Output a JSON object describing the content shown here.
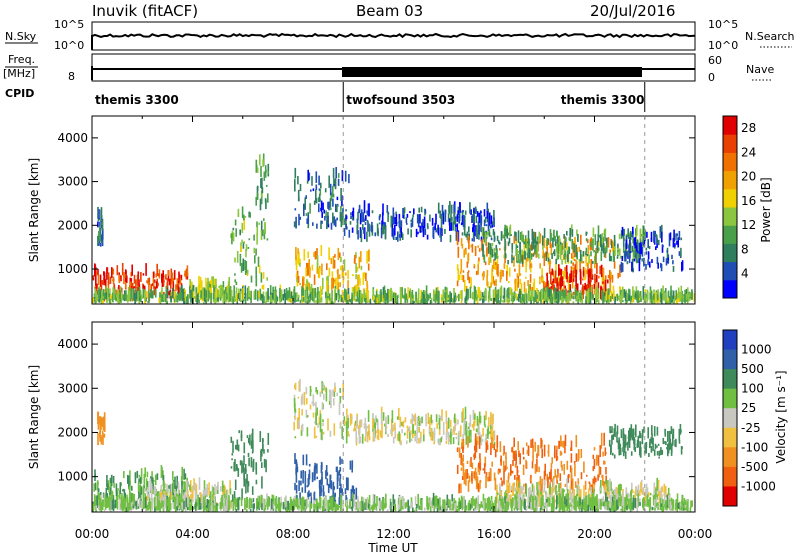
{
  "header": {
    "station": "Inuvik (fitACF)",
    "beam": "Beam 03",
    "date": "20/Jul/2016"
  },
  "status_panels": {
    "nsky_label": "N.Sky",
    "nsearch_label": "N.Search",
    "nsky_ticks": [
      "10^5",
      "10^0"
    ],
    "freq_label": "Freq.",
    "freq_unit": "[MHz]",
    "freq_ticks": [
      "8"
    ],
    "nave_label": "Nave",
    "nave_ticks": [
      "60",
      "0"
    ],
    "cpid_label": "CPID",
    "cpid_segments": [
      {
        "label": "themis 3300",
        "start_hr": 0,
        "end_hr": 10
      },
      {
        "label": "twofsound 3503",
        "start_hr": 10,
        "end_hr": 22
      },
      {
        "label": "themis 3300",
        "start_hr": 22,
        "end_hr": 24
      }
    ]
  },
  "axes": {
    "x_ticks": [
      "00:00",
      "04:00",
      "08:00",
      "12:00",
      "16:00",
      "20:00",
      "00:00"
    ],
    "xlabel": "Time UT",
    "y_ticks": [
      "1000",
      "2000",
      "3000",
      "4000"
    ],
    "ylabel": "Slant Range [km]"
  },
  "power_scale": {
    "title": "Power [dB]",
    "ticks": [
      "4",
      "8",
      "12",
      "16",
      "20",
      "24",
      "28"
    ],
    "colors": [
      "#0000ff",
      "#1f4fb4",
      "#2f7f5f",
      "#4aa04a",
      "#8cc63f",
      "#f0d000",
      "#f0a000",
      "#f07000",
      "#e84000",
      "#e00000"
    ]
  },
  "velocity_scale": {
    "title": "Velocity [m s⁻¹]",
    "ticks": [
      "1000",
      "500",
      "100",
      "25",
      "-25",
      "-100",
      "-500",
      "-1000"
    ],
    "colors": [
      "#2040c0",
      "#2f60a8",
      "#3f8a5a",
      "#6fbf40",
      "#c8c8c0",
      "#f0c040",
      "#f09020",
      "#f06010",
      "#e00000"
    ]
  },
  "chart_data": [
    {
      "type": "heatmap",
      "title": "Power [dB]",
      "xlabel": "Time UT",
      "ylabel": "Slant Range [km]",
      "xlim": [
        0,
        24
      ],
      "ylim": [
        200,
        4500
      ],
      "blobs": [
        {
          "t0": 0.0,
          "t1": 3.8,
          "r0": 250,
          "r1": 900,
          "v": 26
        },
        {
          "t0": 3.8,
          "t1": 5.5,
          "r0": 250,
          "r1": 600,
          "v": 14
        },
        {
          "t0": 0.2,
          "t1": 0.4,
          "r0": 1500,
          "r1": 2200,
          "v": 6
        },
        {
          "t0": 5.5,
          "t1": 7.0,
          "r0": 400,
          "r1": 2200,
          "v": 12
        },
        {
          "t0": 6.5,
          "t1": 7.0,
          "r0": 2300,
          "r1": 3400,
          "v": 10
        },
        {
          "t0": 8.0,
          "t1": 10.2,
          "r0": 1900,
          "r1": 3100,
          "v": 6
        },
        {
          "t0": 10.0,
          "t1": 16.0,
          "r0": 1600,
          "r1": 2300,
          "v": 5
        },
        {
          "t0": 8.0,
          "t1": 11.0,
          "r0": 250,
          "r1": 1300,
          "v": 18
        },
        {
          "t0": 14.5,
          "t1": 21.0,
          "r0": 400,
          "r1": 1600,
          "v": 20
        },
        {
          "t0": 18.0,
          "t1": 20.5,
          "r0": 300,
          "r1": 900,
          "v": 28
        },
        {
          "t0": 15.5,
          "t1": 22.0,
          "r0": 1100,
          "r1": 1800,
          "v": 10
        },
        {
          "t0": 21.0,
          "t1": 23.5,
          "r0": 900,
          "r1": 1800,
          "v": 4
        },
        {
          "t0": 0.0,
          "t1": 24.0,
          "r0": 200,
          "r1": 350,
          "v": 12
        }
      ]
    },
    {
      "type": "heatmap",
      "title": "Velocity [m s⁻¹]",
      "xlabel": "Time UT",
      "ylabel": "Slant Range [km]",
      "xlim": [
        0,
        24
      ],
      "ylim": [
        200,
        4500
      ],
      "blobs": [
        {
          "t0": 0.0,
          "t1": 3.8,
          "r0": 250,
          "r1": 1000,
          "v": 100
        },
        {
          "t0": 2.0,
          "t1": 5.5,
          "r0": 250,
          "r1": 700,
          "v": 0
        },
        {
          "t0": 0.2,
          "t1": 0.5,
          "r0": 1700,
          "r1": 2300,
          "v": -300
        },
        {
          "t0": 5.5,
          "t1": 7.0,
          "r0": 400,
          "r1": 2000,
          "v": 300
        },
        {
          "t0": 8.0,
          "t1": 10.0,
          "r0": 1800,
          "r1": 3000,
          "v": 0
        },
        {
          "t0": 10.0,
          "t1": 16.0,
          "r0": 1700,
          "r1": 2300,
          "v": 0
        },
        {
          "t0": 8.0,
          "t1": 10.5,
          "r0": 250,
          "r1": 1300,
          "v": 600
        },
        {
          "t0": 14.5,
          "t1": 20.5,
          "r0": 600,
          "r1": 1700,
          "v": -500
        },
        {
          "t0": 16.0,
          "t1": 23.0,
          "r0": 300,
          "r1": 700,
          "v": 0
        },
        {
          "t0": 20.5,
          "t1": 23.5,
          "r0": 1400,
          "r1": 2000,
          "v": 200
        },
        {
          "t0": 0.0,
          "t1": 24.0,
          "r0": 200,
          "r1": 350,
          "v": 60
        }
      ]
    }
  ]
}
